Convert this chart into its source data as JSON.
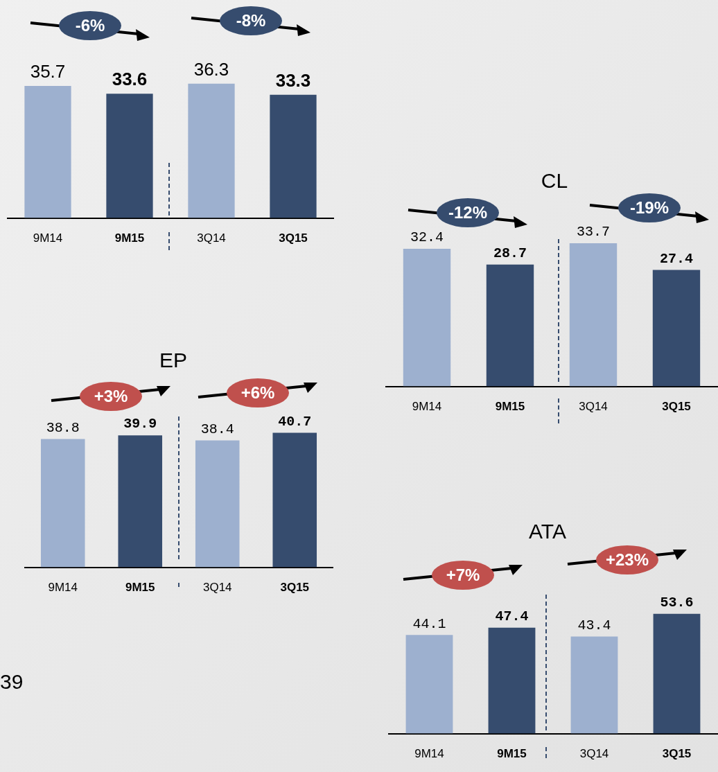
{
  "chart_data": [
    {
      "type": "bar",
      "categories": [
        "9M14",
        "9M15",
        "3Q14",
        "3Q15"
      ],
      "values": [
        35.7,
        33.6,
        36.3,
        33.3
      ],
      "colors": [
        "#9db0cf",
        "#364c6e",
        "#9db0cf",
        "#364c6e"
      ],
      "data_labels": true,
      "tick_labels": "x",
      "annotations": [
        "-6%",
        "-8%"
      ]
    },
    {
      "type": "bar",
      "title": "CL",
      "categories": [
        "9M14",
        "9M15",
        "3Q14",
        "3Q15"
      ],
      "values": [
        32.4,
        28.7,
        33.7,
        27.4
      ],
      "colors": [
        "#9db0cf",
        "#364c6e",
        "#9db0cf",
        "#364c6e"
      ],
      "data_labels": true,
      "tick_labels": "x",
      "annotations": [
        "-12%",
        "-19%"
      ]
    },
    {
      "type": "bar",
      "title": "EP",
      "categories": [
        "9M14",
        "9M15",
        "3Q14",
        "3Q15"
      ],
      "values": [
        38.8,
        39.9,
        38.4,
        40.7
      ],
      "colors": [
        "#9db0cf",
        "#364c6e",
        "#9db0cf",
        "#364c6e"
      ],
      "data_labels": true,
      "tick_labels": "x",
      "annotations": [
        "+3%",
        "+6%",
        "39"
      ]
    },
    {
      "type": "bar",
      "title": "ATA",
      "categories": [
        "9M14",
        "9M15",
        "3Q14",
        "3Q15"
      ],
      "values": [
        44.1,
        47.4,
        43.4,
        53.6
      ],
      "colors": [
        "#9db0cf",
        "#364c6e",
        "#9db0cf",
        "#364c6e"
      ],
      "data_labels": true,
      "tick_labels": "x",
      "annotations": [
        "+7%",
        "+23%"
      ]
    }
  ]
}
